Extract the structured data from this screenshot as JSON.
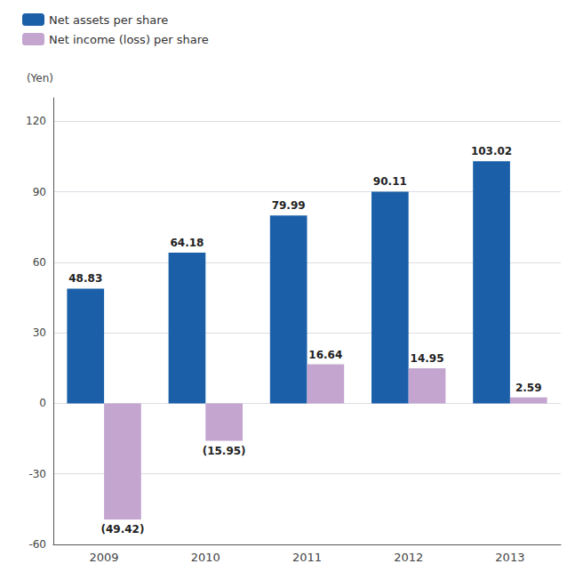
{
  "chart_data": {
    "type": "bar",
    "categories": [
      "2009",
      "2010",
      "2011",
      "2012",
      "2013"
    ],
    "series": [
      {
        "name": "Net assets per share",
        "color": "#1a5fa8",
        "values": [
          48.83,
          64.18,
          79.99,
          90.11,
          103.02
        ]
      },
      {
        "name": "Net income (loss) per share",
        "color": "#c3a5d0",
        "values": [
          -49.42,
          -15.95,
          16.64,
          14.95,
          2.59
        ],
        "value_labels": [
          "(49.42)",
          "(15.95)",
          "16.64",
          "14.95",
          "2.59"
        ]
      }
    ],
    "ylabel": "(Yen)",
    "ylim": [
      -60,
      130
    ],
    "yticks": [
      -60,
      -30,
      0,
      30,
      60,
      90,
      120
    ],
    "grid": true,
    "legend": "upper left",
    "data_labels": true
  }
}
